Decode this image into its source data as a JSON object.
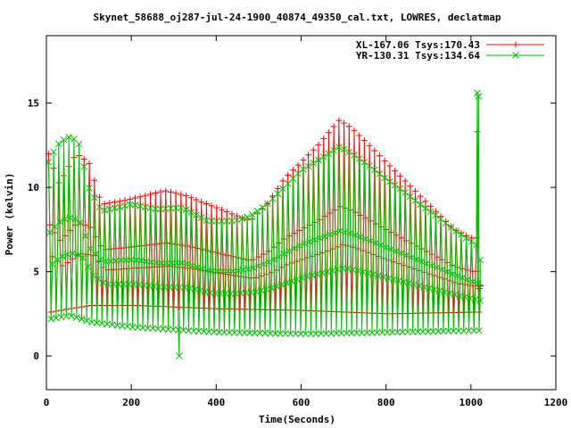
{
  "chart_data": {
    "type": "line",
    "title": "Skynet_58688_oj287-jul-24-1900_40874_49350_cal.txt, LOWRES, declatmap",
    "xlabel": "Time(Seconds)",
    "ylabel": "Power (kelvin)",
    "xlim": [
      0,
      1200
    ],
    "ylim": [
      -2,
      19
    ],
    "x_ticks": [
      "0",
      "200",
      "400",
      "600",
      "800",
      "1000",
      "1200"
    ],
    "y_ticks": [
      "0",
      "5",
      "10",
      "15"
    ],
    "legend_position": "top-right",
    "grid": false,
    "series": [
      {
        "name": "XL-167.06 Tsys:170.43",
        "color": "#ff0000",
        "marker": "plus",
        "x_start": 5,
        "x_end": 1020,
        "step": 12,
        "peaks": [
          [
            5,
            12.0
          ],
          [
            30,
            10.2
          ],
          [
            70,
            12.0
          ],
          [
            100,
            11.5
          ],
          [
            130,
            9.0
          ],
          [
            180,
            9.2
          ],
          [
            230,
            9.5
          ],
          [
            280,
            9.8
          ],
          [
            330,
            9.5
          ],
          [
            380,
            9.0
          ],
          [
            430,
            8.5
          ],
          [
            480,
            8.0
          ],
          [
            520,
            9.0
          ],
          [
            560,
            10.5
          ],
          [
            600,
            11.5
          ],
          [
            640,
            12.5
          ],
          [
            690,
            14.0
          ],
          [
            720,
            13.5
          ],
          [
            760,
            12.5
          ],
          [
            800,
            11.5
          ],
          [
            840,
            10.5
          ],
          [
            880,
            9.5
          ],
          [
            920,
            8.5
          ],
          [
            960,
            7.5
          ],
          [
            1000,
            7.0
          ],
          [
            1020,
            7.0
          ]
        ],
        "troughs": [
          [
            5,
            2.6
          ],
          [
            50,
            2.8
          ],
          [
            100,
            3.0
          ],
          [
            200,
            3.0
          ],
          [
            400,
            2.8
          ],
          [
            600,
            2.7
          ],
          [
            800,
            2.5
          ],
          [
            1000,
            2.6
          ],
          [
            1020,
            2.6
          ]
        ],
        "end_points": [
          [
            1015,
            13.3
          ],
          [
            1020,
            4.0
          ],
          [
            1022,
            4.2
          ]
        ]
      },
      {
        "name": "YR-130.31 Tsys:134.64",
        "color": "#00c000",
        "marker": "x",
        "x_start": 5,
        "x_end": 1020,
        "step": 12,
        "peaks": [
          [
            5,
            11.5
          ],
          [
            25,
            12.5
          ],
          [
            50,
            13.0
          ],
          [
            75,
            12.8
          ],
          [
            100,
            10.0
          ],
          [
            130,
            8.6
          ],
          [
            200,
            9.0
          ],
          [
            260,
            8.7
          ],
          [
            320,
            8.8
          ],
          [
            380,
            8.0
          ],
          [
            440,
            8.0
          ],
          [
            480,
            8.3
          ],
          [
            520,
            9.0
          ],
          [
            560,
            10.0
          ],
          [
            600,
            11.0
          ],
          [
            640,
            11.6
          ],
          [
            690,
            12.4
          ],
          [
            720,
            12.0
          ],
          [
            760,
            11.3
          ],
          [
            800,
            10.5
          ],
          [
            840,
            9.8
          ],
          [
            880,
            9.0
          ],
          [
            920,
            8.3
          ],
          [
            960,
            7.5
          ],
          [
            1000,
            6.8
          ],
          [
            1020,
            6.5
          ]
        ],
        "troughs": [
          [
            5,
            2.2
          ],
          [
            50,
            2.4
          ],
          [
            100,
            2.0
          ],
          [
            200,
            1.7
          ],
          [
            400,
            1.4
          ],
          [
            600,
            1.3
          ],
          [
            800,
            1.4
          ],
          [
            1000,
            1.5
          ],
          [
            1020,
            1.5
          ]
        ],
        "end_points": [
          [
            313,
            0.0
          ],
          [
            1015,
            15.6
          ],
          [
            1018,
            15.4
          ],
          [
            1022,
            5.7
          ]
        ]
      }
    ]
  }
}
